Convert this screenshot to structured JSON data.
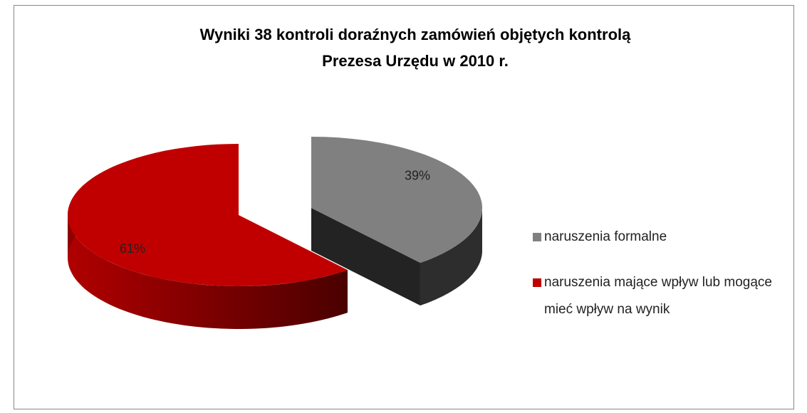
{
  "chart_data": {
    "type": "pie3d",
    "title": [
      "Wyniki 38 kontroli doraźnych zamówień objętych kontrolą",
      "Prezesa  Urzędu w 2010 r."
    ],
    "categories": [
      "naruszenia formalne",
      "naruszenia mające wpływ lub mogące mieć wpływ na wynik"
    ],
    "values": [
      39,
      61
    ],
    "value_labels": [
      "39%",
      "61%"
    ],
    "colors": [
      "#808080",
      "#c00000"
    ],
    "legend": "right"
  }
}
